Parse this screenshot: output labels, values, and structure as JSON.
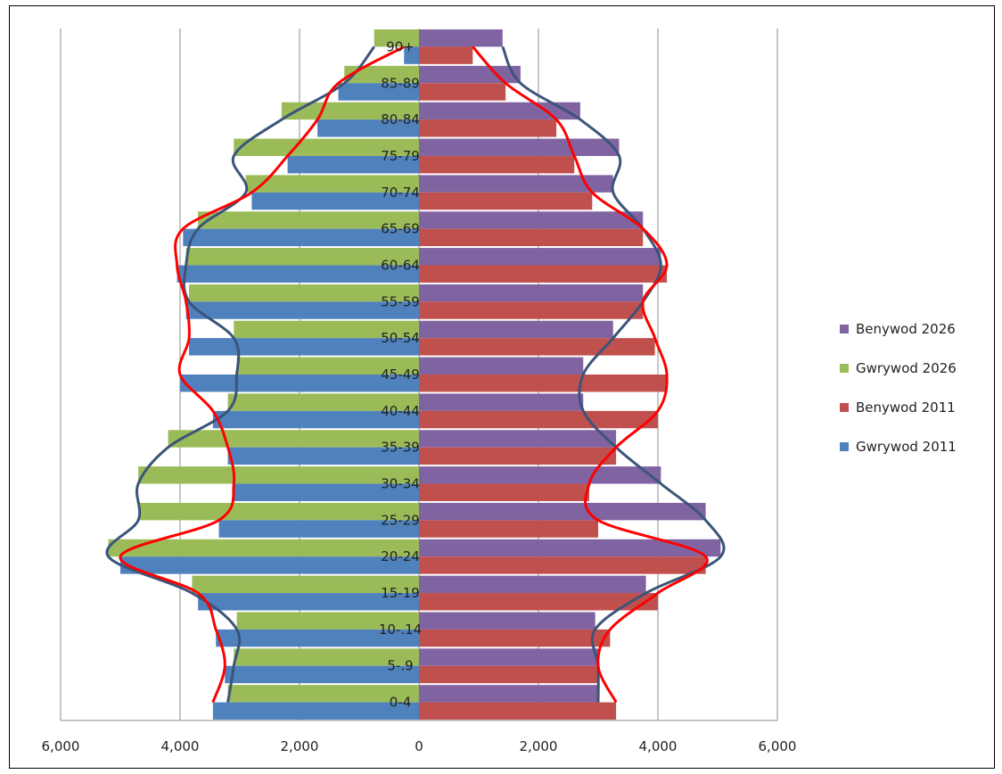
{
  "chart_data": {
    "type": "bar",
    "orientation": "horizontal",
    "layout": "population-pyramid",
    "categories": [
      "0-4",
      "5-.9",
      "10-.14",
      "15-19",
      "20-24",
      "25-29",
      "30-34",
      "35-39",
      "40-44",
      "45-49",
      "50-54",
      "55-59",
      "60-64",
      "65-69",
      "70-74",
      "75-79",
      "80-84",
      "85-89",
      "90+"
    ],
    "series": [
      {
        "name": "Benywod 2026",
        "side": "right",
        "color": "#8064A2",
        "values": [
          3000,
          3000,
          2950,
          3800,
          5050,
          4800,
          4050,
          3300,
          2750,
          2750,
          3250,
          3750,
          4050,
          3750,
          3250,
          3350,
          2700,
          1700,
          1400
        ]
      },
      {
        "name": "Gwrywod 2026",
        "side": "left",
        "color": "#9BBB59",
        "values": [
          3200,
          3100,
          3050,
          3800,
          5200,
          4700,
          4700,
          4200,
          3200,
          3050,
          3100,
          3850,
          3900,
          3700,
          2900,
          3100,
          2300,
          1250,
          750
        ]
      },
      {
        "name": "Benywod 2011",
        "side": "right",
        "color": "#C0504D",
        "values": [
          3300,
          3000,
          3200,
          4000,
          4800,
          3000,
          2850,
          3300,
          4000,
          4150,
          3950,
          3750,
          4150,
          3750,
          2900,
          2600,
          2300,
          1450,
          900
        ]
      },
      {
        "name": "Gwrywod 2011",
        "side": "left",
        "color": "#4F81BD",
        "values": [
          3450,
          3250,
          3400,
          3700,
          5000,
          3350,
          3100,
          3200,
          3450,
          4000,
          3850,
          3900,
          4050,
          3950,
          2800,
          2200,
          1700,
          1350,
          250
        ]
      }
    ],
    "xticks": [
      "6,000",
      "4,000",
      "2,000",
      "0",
      "2,000",
      "4,000",
      "6,000"
    ],
    "xlim": [
      -6000,
      6000
    ],
    "grid": "vertical",
    "legend_position": "right",
    "trend_lines": {
      "navy_color": "#3B5479",
      "red_color": "#FF0000"
    }
  }
}
